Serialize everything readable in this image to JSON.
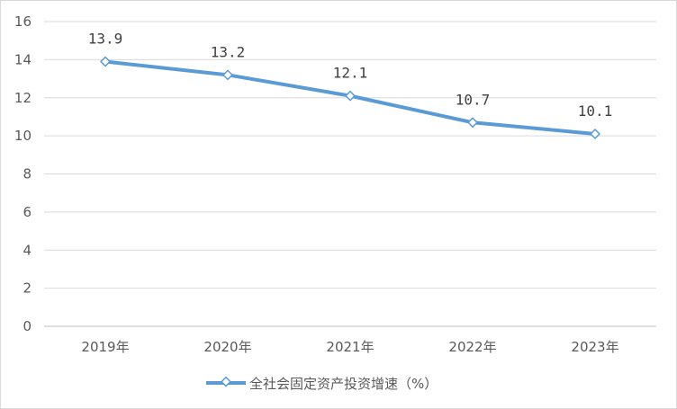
{
  "chart_data": {
    "type": "line",
    "categories": [
      "2019年",
      "2020年",
      "2021年",
      "2022年",
      "2023年"
    ],
    "series": [
      {
        "name": "全社会固定资产投资增速（%）",
        "values": [
          13.9,
          13.2,
          12.1,
          10.7,
          10.1
        ]
      }
    ],
    "data_labels": [
      "13.9",
      "13.2",
      "12.1",
      "10.7",
      "10.1"
    ],
    "yticks": [
      "0",
      "2",
      "4",
      "6",
      "8",
      "10",
      "12",
      "14",
      "16"
    ],
    "ylim": [
      0,
      16
    ],
    "grid": true,
    "legend_position": "bottom",
    "colors": {
      "line": "#5b9bd5",
      "grid": "#d9d9d9",
      "axis": "#bfbfbf",
      "marker_fill": "#ffffff"
    }
  }
}
